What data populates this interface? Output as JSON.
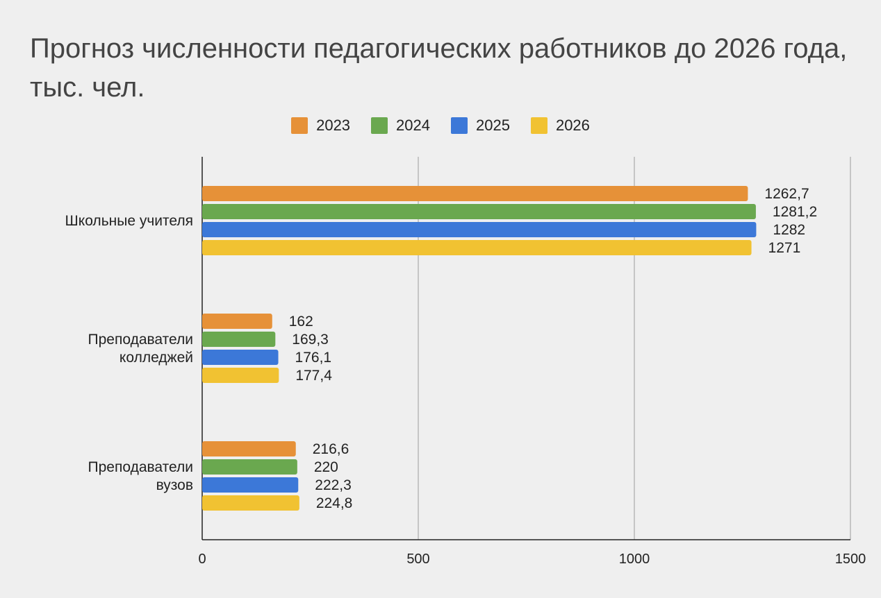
{
  "chart_data": {
    "type": "bar",
    "orientation": "horizontal",
    "title": "Прогноз численности педагогических работников до 2026 года, тыс. чел.",
    "title_lines": [
      "Прогноз численности педагогических работников до 2026 года,",
      "тыс. чел."
    ],
    "categories": [
      {
        "label": "Школьные учителя",
        "lines": [
          "Школьные учителя"
        ]
      },
      {
        "label": "Преподаватели колледжей",
        "lines": [
          "Преподаватели",
          "колледжей"
        ]
      },
      {
        "label": "Преподаватели вузов",
        "lines": [
          "Преподаватели",
          "вузов"
        ]
      }
    ],
    "series": [
      {
        "name": "2023",
        "color": "#e69138",
        "values": [
          1262.7,
          162,
          216.6
        ],
        "labels": [
          "1262,7",
          "162",
          "216,6"
        ]
      },
      {
        "name": "2024",
        "color": "#6aa84f",
        "values": [
          1281.2,
          169.3,
          220
        ],
        "labels": [
          "1281,2",
          "169,3",
          "220"
        ]
      },
      {
        "name": "2025",
        "color": "#3c78d8",
        "values": [
          1282,
          176.1,
          222.3
        ],
        "labels": [
          "1282",
          "176,1",
          "222,3"
        ]
      },
      {
        "name": "2026",
        "color": "#f1c232",
        "values": [
          1271,
          177.4,
          224.8
        ],
        "labels": [
          "1271",
          "177,4",
          "224,8"
        ]
      }
    ],
    "xlim": [
      0,
      1500
    ],
    "xticks": [
      0,
      500,
      1000,
      1500
    ],
    "xlabel": "",
    "ylabel": "",
    "grid": true,
    "legend_position": "top"
  }
}
